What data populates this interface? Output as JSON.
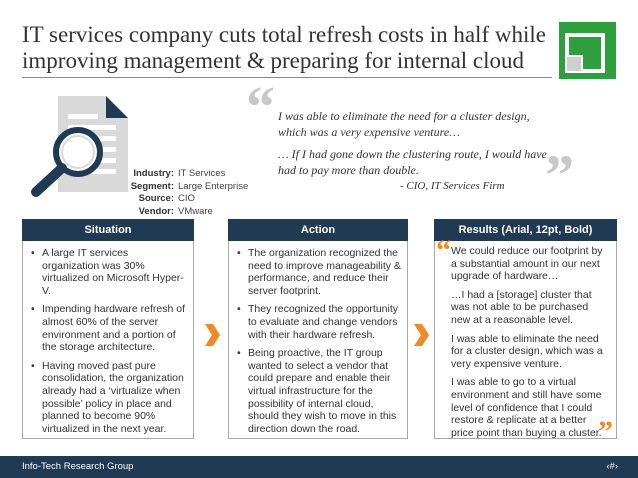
{
  "title": {
    "line1": "IT services company cuts total refresh costs in half while",
    "line2": "improving management & preparing for internal cloud"
  },
  "colors": {
    "navy": "#1f3a52",
    "accent_orange": "#f08a24",
    "logo_green": "#2f9e3e"
  },
  "icons": {
    "document": "document-search-icon",
    "logo": "infotech-logo"
  },
  "profile": [
    {
      "label": "Industry:",
      "value": "IT Services"
    },
    {
      "label": "Segment:",
      "value": "Large Enterprise"
    },
    {
      "label": "Source:",
      "value": "CIO"
    },
    {
      "label": "Vendor:",
      "value": "VMware"
    }
  ],
  "quote": {
    "line1": "I was able to eliminate the need for a cluster design, which was a very expensive venture…",
    "line2": "… If I had gone down the clustering route, I would have had to pay more than double.",
    "attribution": "- CIO, IT Services Firm"
  },
  "situation": {
    "header": "Situation",
    "bullets": [
      "A  large IT services organization was 30% virtualized on Microsoft Hyper-V.",
      "Impending hardware refresh of almost 60% of the server environment and a portion of the storage architecture.",
      "Having moved past pure consolidation, the organization already had a ‘virtualize when possible’ policy in place and planned to become 90% virtualized in the next year."
    ]
  },
  "action": {
    "header": "Action",
    "bullets": [
      "The organization recognized the need to improve manageability & performance, and reduce their server footprint.",
      "They recognized the opportunity to evaluate and change vendors with their hardware refresh.",
      "Being proactive, the IT group wanted to select a vendor that could prepare and enable their virtual infrastructure for the possibility of internal cloud, should they wish to move in this direction down the road."
    ]
  },
  "results": {
    "header": "Results (Arial, 12pt, Bold)",
    "paragraphs": [
      "We could reduce our footprint by a substantial amount in our next upgrade of hardware…",
      "…I had a [storage] cluster that was not able to be purchased new at a reasonable level.",
      "I was able to eliminate the need for a cluster design, which was a very expensive venture.",
      "I was able to go to a virtual environment and still have some level of confidence that I could restore & replicate at a better price point than buying a cluster."
    ]
  },
  "footer": {
    "brand": "Info-Tech Research Group",
    "page": "‹#›"
  }
}
